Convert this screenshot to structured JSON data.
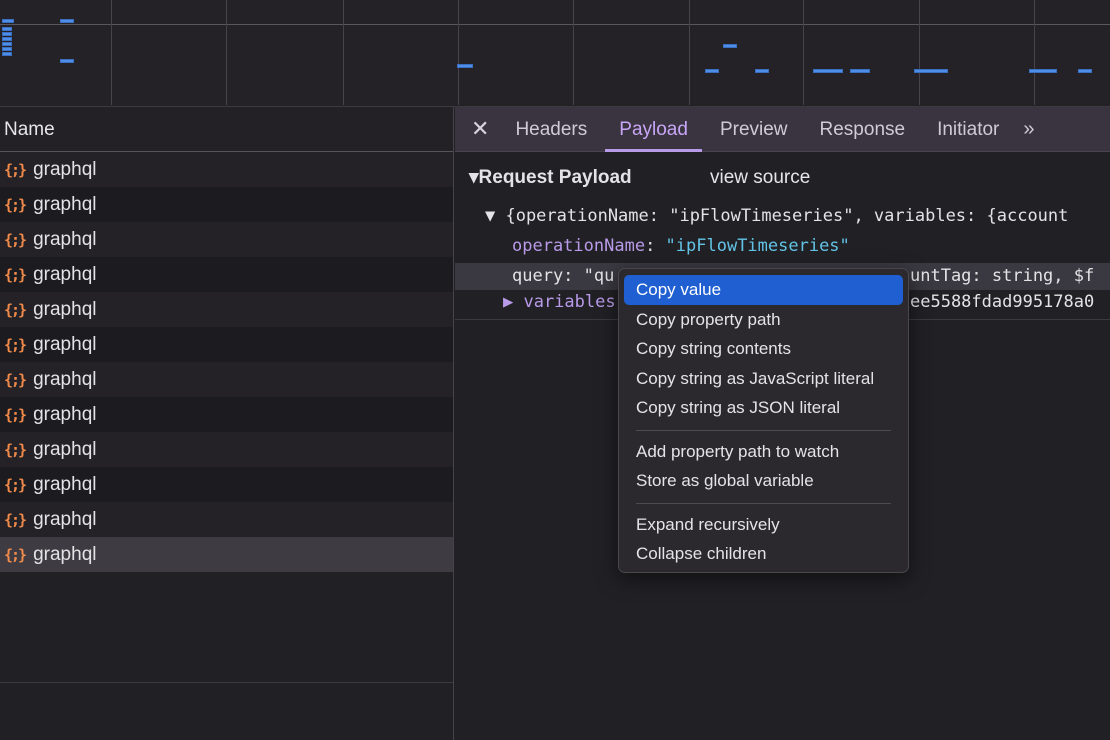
{
  "requests_header": "Name",
  "requests": [
    {
      "name": "graphql",
      "icon": "{;}"
    },
    {
      "name": "graphql",
      "icon": "{;}"
    },
    {
      "name": "graphql",
      "icon": "{;}"
    },
    {
      "name": "graphql",
      "icon": "{;}"
    },
    {
      "name": "graphql",
      "icon": "{;}"
    },
    {
      "name": "graphql",
      "icon": "{;}"
    },
    {
      "name": "graphql",
      "icon": "{;}"
    },
    {
      "name": "graphql",
      "icon": "{;}"
    },
    {
      "name": "graphql",
      "icon": "{;}"
    },
    {
      "name": "graphql",
      "icon": "{;}"
    },
    {
      "name": "graphql",
      "icon": "{;}"
    },
    {
      "name": "graphql",
      "icon": "{;}",
      "selected": true
    }
  ],
  "tabs": {
    "close": "✕",
    "items": [
      "Headers",
      "Payload",
      "Preview",
      "Response",
      "Initiator"
    ],
    "active": "Payload",
    "more": "»"
  },
  "payload": {
    "section_title": "▾Request Payload",
    "view_source": "view source",
    "summary": "▼ {operationName: \"ipFlowTimeseries\", variables: {account",
    "op_key": "operationName",
    "op_value": "\"ipFlowTimeseries\"",
    "query_start": "query: \"qu",
    "query_end": "untTag: string, $f",
    "variables_key": "▶ variables",
    "variables_end": "ee5588fdad995178a0"
  },
  "context_menu": {
    "groups": [
      [
        "Copy value",
        "Copy property path",
        "Copy string contents",
        "Copy string as JavaScript literal",
        "Copy string as JSON literal"
      ],
      [
        "Add property path to watch",
        "Store as global variable"
      ],
      [
        "Expand recursively",
        "Collapse children"
      ]
    ],
    "highlighted": "Copy value"
  },
  "colors": {
    "accent": "#c7a6f5",
    "highlight": "#1f5fd1",
    "bar": "#4f8ee8",
    "graphql_icon": "#f08a4b"
  }
}
